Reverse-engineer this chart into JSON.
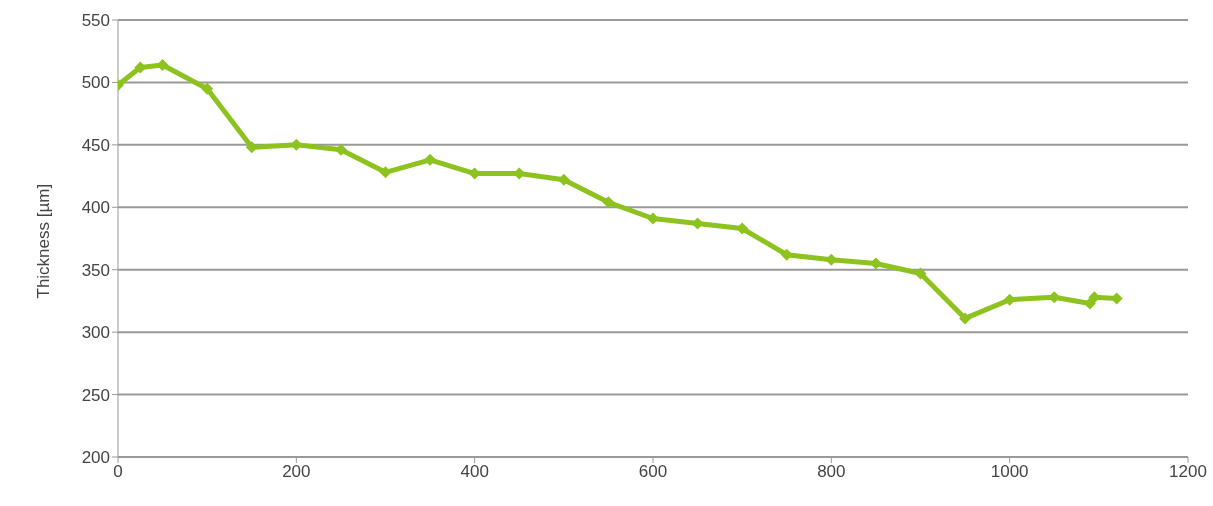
{
  "chart_data": {
    "type": "line",
    "ylabel": "Thickness [µm]",
    "x": [
      0,
      25,
      50,
      100,
      150,
      200,
      250,
      300,
      350,
      400,
      450,
      500,
      550,
      600,
      650,
      700,
      750,
      800,
      850,
      900,
      950,
      1000,
      1050,
      1090,
      1095,
      1120
    ],
    "series": [
      {
        "color": "#8dc21f",
        "values": [
          498,
          512,
          514,
          495,
          448,
          450,
          446,
          428,
          438,
          427,
          427,
          422,
          404,
          391,
          387,
          383,
          362,
          358,
          355,
          347,
          311,
          326,
          328,
          323,
          328,
          327
        ]
      }
    ],
    "xlim": [
      0,
      1200
    ],
    "xticks": [
      0,
      200,
      400,
      600,
      800,
      1000,
      1200
    ],
    "ylim": [
      200,
      550
    ],
    "yticks": [
      200,
      250,
      300,
      350,
      400,
      450,
      500,
      550
    ],
    "grid": "y",
    "marker": "diamond",
    "line_style": "solid"
  }
}
